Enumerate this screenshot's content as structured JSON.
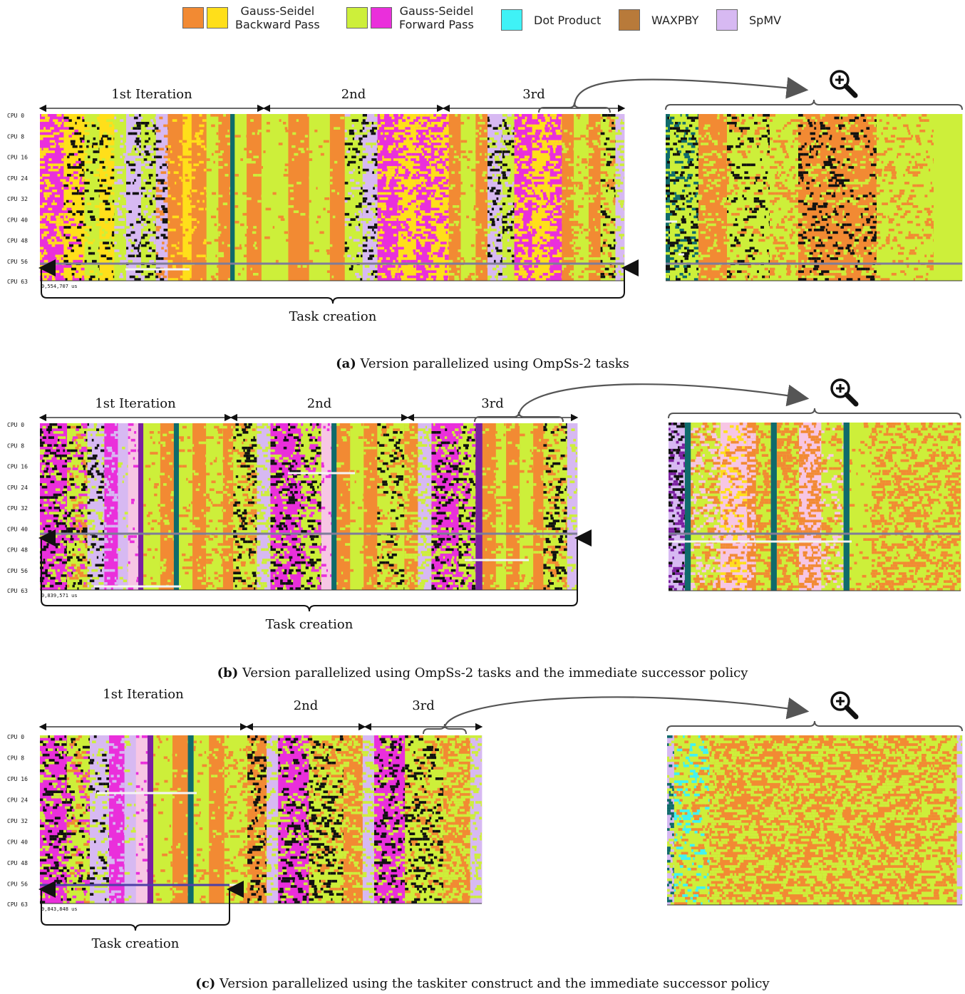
{
  "legend": {
    "items": [
      {
        "label_line1": "Gauss-Seidel",
        "label_line2": "Backward Pass",
        "colors": [
          "#f28a33",
          "#ffdf1a"
        ]
      },
      {
        "label_line1": "Gauss-Seidel",
        "label_line2": "Forward Pass",
        "colors": [
          "#cdef3a",
          "#ea2fdb"
        ]
      },
      {
        "label_line1": "Dot Product",
        "label_line2": "",
        "colors": [
          "#3ff2f6"
        ]
      },
      {
        "label_line1": "WAXPBY",
        "label_line2": "",
        "colors": [
          "#b87a3a"
        ]
      },
      {
        "label_line1": "SpMV",
        "label_line2": "",
        "colors": [
          "#d7b9f2"
        ]
      }
    ]
  },
  "chart_data": [
    {
      "type": "heatmap",
      "panel": "a",
      "caption_letter": "(a)",
      "caption": "Version parallelized using OmpSs-2 tasks",
      "y_tick_labels": [
        "CPU  0",
        "CPU  8",
        "CPU 16",
        "CPU 24",
        "CPU 32",
        "CPU 40",
        "CPU 48",
        "CPU 56",
        "CPU 63"
      ],
      "duration_label": "0,554,707 us",
      "iteration_labels": [
        "1st Iteration",
        "2nd",
        "3rd"
      ],
      "annotation": "Task creation"
    },
    {
      "type": "heatmap",
      "panel": "b",
      "caption_letter": "(b)",
      "caption": "Version parallelized using OmpSs-2 tasks and the immediate successor policy",
      "y_tick_labels": [
        "CPU  0",
        "CPU  8",
        "CPU 16",
        "CPU 24",
        "CPU 32",
        "CPU 40",
        "CPU 48",
        "CPU 56",
        "CPU 63"
      ],
      "duration_label": "0,839,571 us",
      "iteration_labels": [
        "1st Iteration",
        "2nd",
        "3rd"
      ],
      "annotation": "Task creation"
    },
    {
      "type": "heatmap",
      "panel": "c",
      "caption_letter": "(c)",
      "caption": "Version parallelized using the taskiter construct and the immediate successor policy",
      "y_tick_labels": [
        "CPU  0",
        "CPU  8",
        "CPU 16",
        "CPU 24",
        "CPU 32",
        "CPU 40",
        "CPU 48",
        "CPU 56",
        "CPU 63"
      ],
      "duration_label": "9,843,848 us",
      "iteration_labels": [
        "1st Iteration",
        "2nd",
        "3rd"
      ],
      "annotation": "Task creation"
    }
  ],
  "colors": {
    "gs_back_orange": "#f28a33",
    "gs_back_yellow": "#ffdf1a",
    "gs_fwd_green": "#cdef3a",
    "gs_fwd_magenta": "#ea2fdb",
    "dot": "#3ff2f6",
    "waxpby": "#b87a3a",
    "spmv": "#d7b9f2",
    "dark_teal": "#0f6b6b",
    "purple": "#7a1fa0",
    "pink": "#f7c6e4"
  },
  "icons": {
    "zoom": "zoom-in-magnifier-icon"
  }
}
